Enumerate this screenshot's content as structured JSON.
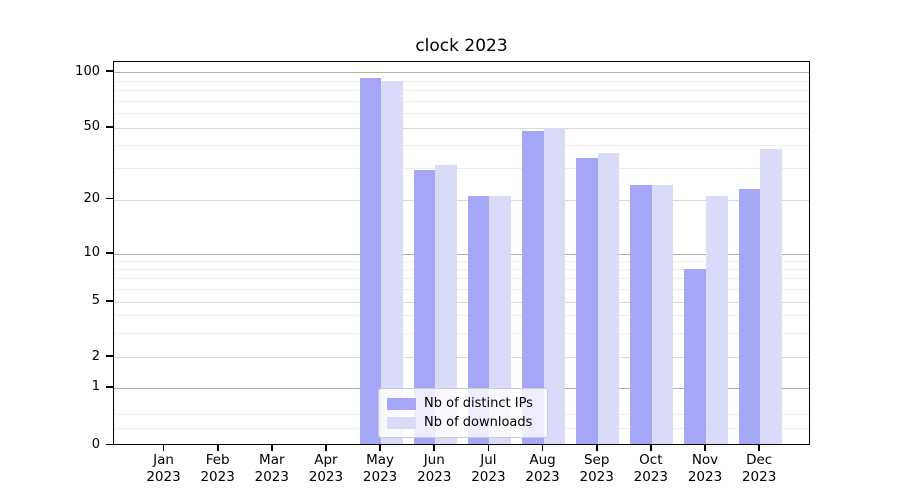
{
  "chart_data": {
    "type": "bar",
    "title": "clock 2023",
    "categories": [
      "Jan",
      "Feb",
      "Mar",
      "Apr",
      "May",
      "Jun",
      "Jul",
      "Aug",
      "Sep",
      "Oct",
      "Nov",
      "Dec"
    ],
    "category_year": "2023",
    "series": [
      {
        "name": "Nb of distinct IPs",
        "color": "#a6a6f7",
        "values": [
          0,
          0,
          0,
          0,
          93,
          29,
          21,
          48,
          34,
          24,
          8,
          23
        ]
      },
      {
        "name": "Nb of downloads",
        "color": "#dadaf9",
        "values": [
          0,
          0,
          0,
          0,
          90,
          31,
          21,
          50,
          36,
          24,
          21,
          38
        ]
      }
    ],
    "xlabel": "",
    "ylabel": "",
    "yscale": "symlog",
    "yticks": [
      0,
      1,
      2,
      5,
      10,
      20,
      50,
      100
    ],
    "ylim": [
      0,
      113
    ],
    "grid": true,
    "legend_position": "lower center",
    "colors": {
      "major_gridline": "#b0b0b0",
      "sub_gridline": "#d9d9d9",
      "minor_gridline": "#ededed",
      "axis": "#000000",
      "background": "#ffffff"
    }
  }
}
